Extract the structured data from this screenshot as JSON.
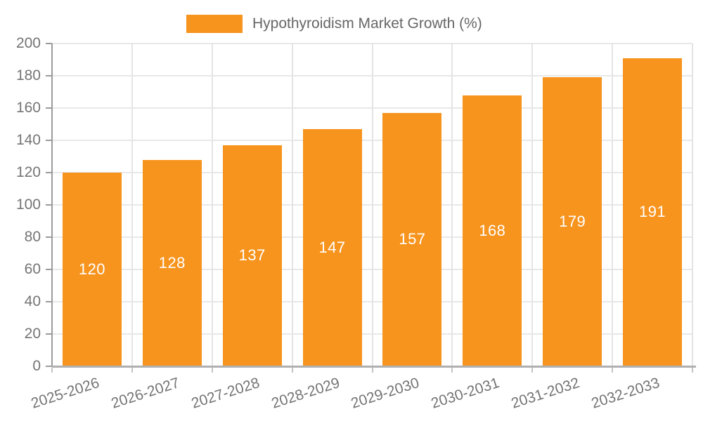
{
  "chart_data": {
    "type": "bar",
    "title": "Hypothyroidism Market Growth (%)",
    "categories": [
      "2025-2026",
      "2026-2027",
      "2027-2028",
      "2028-2029",
      "2029-2030",
      "2030-2031",
      "2031-2032",
      "2032-2033"
    ],
    "values": [
      120,
      128,
      137,
      147,
      157,
      168,
      179,
      191
    ],
    "xlabel": "",
    "ylabel": "",
    "ylim": [
      0,
      200
    ],
    "ytick_step": 20,
    "yticks": [
      0,
      20,
      40,
      60,
      80,
      100,
      120,
      140,
      160,
      180,
      200
    ],
    "grid": "on",
    "legend_position": "top",
    "value_label_position": "inside-center"
  },
  "colors": {
    "bar": "#F7941E",
    "value_label": "#FFFFFF",
    "grid_h": "#E8E8E8",
    "grid_v": "#E4E4E4",
    "axis_y": "#9B9B9B",
    "axis_x": "#B0B0B0",
    "tick": "#C4C4C4",
    "tick_label": "#757575",
    "legend_text": "#666666",
    "background": "#FFFFFF"
  }
}
